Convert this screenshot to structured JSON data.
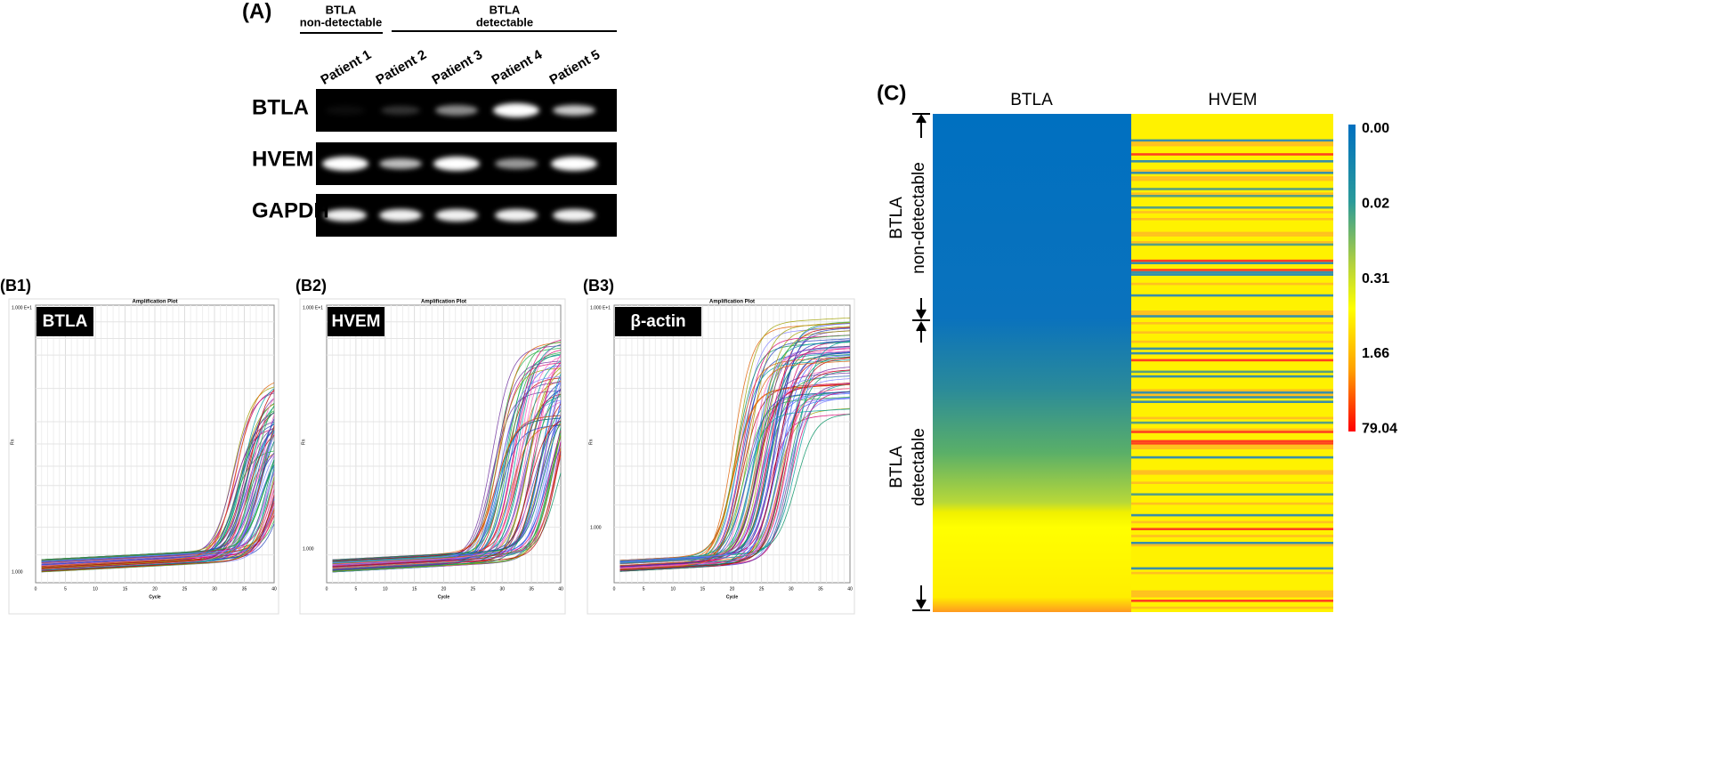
{
  "panel_a": {
    "label": "(A)",
    "groups": [
      {
        "lines": [
          "BTLA",
          "non-detectable"
        ]
      },
      {
        "lines": [
          "BTLA",
          "detectable"
        ]
      }
    ],
    "lanes": [
      "Patient 1",
      "Patient 2",
      "Patient 3",
      "Patient 4",
      "Patient 5"
    ],
    "rows": [
      "BTLA",
      "HVEM",
      "GAPDH"
    ]
  },
  "panel_b": {
    "plots": [
      {
        "label": "(B1)",
        "gene": "BTLA",
        "title": "Amplification Plot",
        "x_label": "Cycle",
        "y_label": "Rn",
        "y_ticks": [
          "1.000 E+1",
          "1.000"
        ],
        "x_ticks": [
          0,
          5,
          10,
          15,
          20,
          25,
          30,
          35,
          40
        ]
      },
      {
        "label": "(B2)",
        "gene": "HVEM",
        "title": "Amplification Plot",
        "x_label": "Cycle",
        "y_label": "Rn",
        "y_ticks": [
          "1.000 E+1",
          "1.000"
        ],
        "x_ticks": [
          0,
          5,
          10,
          15,
          20,
          25,
          30,
          35,
          40
        ]
      },
      {
        "label": "(B3)",
        "gene": "β-actin",
        "title": "Amplification Plot",
        "x_label": "Cycle",
        "y_label": "Rn",
        "y_ticks": [
          "1.000 E+1",
          "1.000"
        ],
        "x_ticks": [
          0,
          5,
          10,
          15,
          20,
          25,
          30,
          35,
          40
        ]
      }
    ]
  },
  "panel_c": {
    "label": "(C)",
    "columns": [
      "BTLA",
      "HVEM"
    ],
    "groups": [
      {
        "lines": [
          "BTLA",
          "non-detectable"
        ]
      },
      {
        "lines": [
          "BTLA",
          "detectable"
        ]
      }
    ],
    "colorbar_ticks": [
      {
        "value": 0,
        "label": "0.00"
      },
      0.02,
      0.31,
      1.66,
      79.04
    ]
  }
}
